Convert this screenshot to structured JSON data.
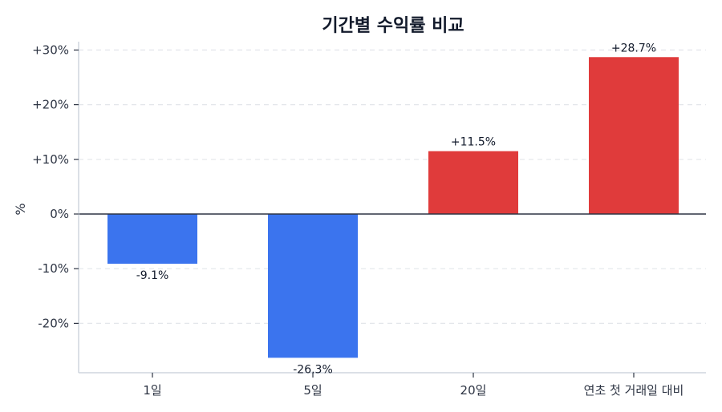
{
  "chart_data": {
    "type": "bar",
    "title": "기간별 수익률 비교",
    "xlabel": "",
    "ylabel": "%",
    "categories": [
      "1일",
      "5일",
      "20일",
      "연초 첫 거래일 대비"
    ],
    "values": [
      -9.1,
      -26.3,
      11.5,
      28.7
    ],
    "value_labels": [
      "-9.1%",
      "-26.3%",
      "+11.5%",
      "+28.7%"
    ],
    "bar_colors": [
      "#3b74ee",
      "#3b74ee",
      "#e03b3b",
      "#e03b3b"
    ],
    "yticks": [
      30,
      20,
      10,
      0,
      -10,
      -20
    ],
    "ytick_labels": [
      "+30%",
      "+20%",
      "+10%",
      "0%",
      "-10%",
      "-20%"
    ],
    "ylim": [
      -29,
      31.5
    ],
    "grid": "horizontal dashed",
    "zero_line": true,
    "legend": null
  },
  "colors": {
    "positive": "#e03b3b",
    "negative": "#3b74ee",
    "zero_line": "#2d3443",
    "grid": "#e3e6ea",
    "spine": "#cfd5de"
  }
}
